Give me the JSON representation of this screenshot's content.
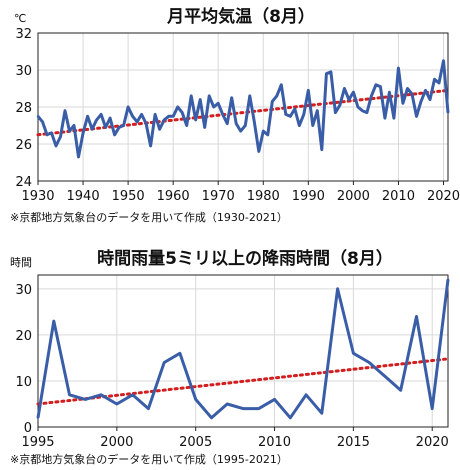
{
  "chart_data": [
    {
      "type": "line",
      "title": "月平均気温（8月）",
      "unit_label": "℃",
      "source_note": "※京都地方気象台のデータを用いて作成（1930-2021）",
      "xlim": [
        1930,
        2021
      ],
      "ylim": [
        24,
        32
      ],
      "x_ticks": [
        1930,
        1940,
        1950,
        1960,
        1970,
        1980,
        1990,
        2000,
        2010,
        2020
      ],
      "y_ticks": [
        24,
        26,
        28,
        30,
        32
      ],
      "grid": true,
      "colors": {
        "series": "#3a5da8",
        "trend": "#d21e1e"
      },
      "series": [
        {
          "x": [
            1930,
            1931,
            1932,
            1933,
            1934,
            1935,
            1936,
            1937,
            1938,
            1939,
            1940,
            1941,
            1942,
            1943,
            1944,
            1945,
            1946,
            1947,
            1948,
            1949,
            1950,
            1951,
            1952,
            1953,
            1954,
            1955,
            1956,
            1957,
            1958,
            1959,
            1960,
            1961,
            1962,
            1963,
            1964,
            1965,
            1966,
            1967,
            1968,
            1969,
            1970,
            1971,
            1972,
            1973,
            1974,
            1975,
            1976,
            1977,
            1978,
            1979,
            1980,
            1981,
            1982,
            1983,
            1984,
            1985,
            1986,
            1987,
            1988,
            1989,
            1990,
            1991,
            1992,
            1993,
            1994,
            1995,
            1996,
            1997,
            1998,
            1999,
            2000,
            2001,
            2002,
            2003,
            2004,
            2005,
            2006,
            2007,
            2008,
            2009,
            2010,
            2011,
            2012,
            2013,
            2014,
            2015,
            2016,
            2017,
            2018,
            2019,
            2020,
            2021
          ],
          "values": [
            27.5,
            27.2,
            26.5,
            26.6,
            25.9,
            26.4,
            27.8,
            26.7,
            27.0,
            25.3,
            26.6,
            27.5,
            26.8,
            27.3,
            27.6,
            26.9,
            27.4,
            26.5,
            26.9,
            27.0,
            28.0,
            27.5,
            27.2,
            27.6,
            27.1,
            25.9,
            27.6,
            26.8,
            27.3,
            27.5,
            27.5,
            28.0,
            27.7,
            27.0,
            28.6,
            27.3,
            28.4,
            26.9,
            28.6,
            28.0,
            28.2,
            27.6,
            27.1,
            28.5,
            27.1,
            26.7,
            27.0,
            28.6,
            27.2,
            25.6,
            26.7,
            26.5,
            28.3,
            28.6,
            29.2,
            27.6,
            27.5,
            27.9,
            27.0,
            27.6,
            28.9,
            27.0,
            27.8,
            25.7,
            29.8,
            29.9,
            27.7,
            28.1,
            29.0,
            28.4,
            28.8,
            28.0,
            27.8,
            27.7,
            28.6,
            29.2,
            29.1,
            27.4,
            28.8,
            27.4,
            30.1,
            28.2,
            29.0,
            28.7,
            27.5,
            28.3,
            28.9,
            28.4,
            29.5,
            29.3,
            30.5,
            27.7
          ]
        },
        {
          "trend_start": [
            1930,
            26.5
          ],
          "trend_end": [
            2021,
            28.9
          ]
        }
      ]
    },
    {
      "type": "line",
      "title": "時間雨量5ミリ以上の降雨時間（8月）",
      "unit_label": "時間",
      "source_note": "※京都地方気象台のデータを用いて作成（1995-2021）",
      "xlim": [
        1995,
        2021
      ],
      "ylim": [
        0,
        33
      ],
      "x_ticks": [
        1995,
        2000,
        2005,
        2010,
        2015,
        2020
      ],
      "y_ticks": [
        0,
        10,
        20,
        30
      ],
      "grid": true,
      "colors": {
        "series": "#3a5da8",
        "trend": "#d21e1e"
      },
      "series": [
        {
          "x": [
            1995,
            1996,
            1997,
            1998,
            1999,
            2000,
            2001,
            2002,
            2003,
            2004,
            2005,
            2006,
            2007,
            2008,
            2009,
            2010,
            2011,
            2012,
            2013,
            2014,
            2015,
            2016,
            2017,
            2018,
            2019,
            2020,
            2021
          ],
          "values": [
            2,
            23,
            7,
            6,
            7,
            5,
            7,
            4,
            14,
            16,
            6,
            2,
            5,
            4,
            4,
            6,
            2,
            7,
            3,
            30,
            16,
            14,
            11,
            8,
            24,
            4,
            32
          ]
        },
        {
          "trend_start": [
            1995,
            5
          ],
          "trend_end": [
            2021,
            14.8
          ]
        }
      ]
    }
  ]
}
